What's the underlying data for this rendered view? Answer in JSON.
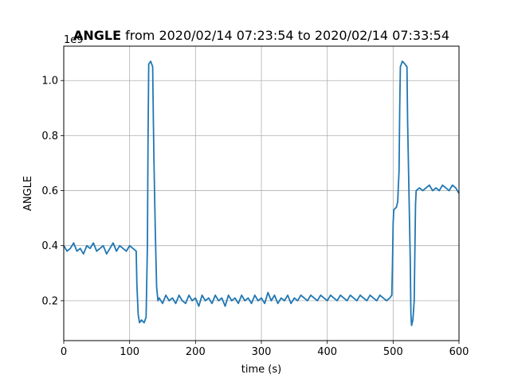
{
  "chart_data": {
    "type": "line",
    "title_bold": "ANGLE",
    "title_rest": " from 2020/02/14 07:23:54 to 2020/02/14 07:33:54",
    "xlabel": "time (s)",
    "ylabel": "ANGLE",
    "offset_text": "1e9",
    "xlim": [
      0,
      600
    ],
    "ylim": [
      0.055,
      1.125
    ],
    "y_multiplier": 1000000000,
    "xticks": [
      0,
      100,
      200,
      300,
      400,
      500,
      600
    ],
    "xtick_labels": [
      "0",
      "100",
      "200",
      "300",
      "400",
      "500",
      "600"
    ],
    "yticks": [
      0.2,
      0.4,
      0.6,
      0.8,
      1.0
    ],
    "ytick_labels": [
      "0.2",
      "0.4",
      "0.6",
      "0.8",
      "1.0"
    ],
    "grid": true,
    "line_color": "#1f77b4",
    "series": [
      {
        "name": "",
        "points": [
          [
            0,
            0.4
          ],
          [
            5,
            0.38
          ],
          [
            10,
            0.39
          ],
          [
            15,
            0.41
          ],
          [
            20,
            0.38
          ],
          [
            25,
            0.39
          ],
          [
            30,
            0.37
          ],
          [
            35,
            0.4
          ],
          [
            40,
            0.39
          ],
          [
            45,
            0.41
          ],
          [
            50,
            0.38
          ],
          [
            55,
            0.39
          ],
          [
            60,
            0.4
          ],
          [
            65,
            0.37
          ],
          [
            70,
            0.39
          ],
          [
            75,
            0.41
          ],
          [
            80,
            0.38
          ],
          [
            85,
            0.4
          ],
          [
            90,
            0.39
          ],
          [
            95,
            0.38
          ],
          [
            100,
            0.4
          ],
          [
            105,
            0.39
          ],
          [
            110,
            0.38
          ],
          [
            111,
            0.26
          ],
          [
            113,
            0.15
          ],
          [
            115,
            0.12
          ],
          [
            118,
            0.13
          ],
          [
            122,
            0.12
          ],
          [
            125,
            0.14
          ],
          [
            127,
            0.4
          ],
          [
            128,
            0.8
          ],
          [
            129,
            1.06
          ],
          [
            132,
            1.07
          ],
          [
            135,
            1.05
          ],
          [
            136,
            0.86
          ],
          [
            137,
            0.7
          ],
          [
            139,
            0.45
          ],
          [
            141,
            0.25
          ],
          [
            143,
            0.2
          ],
          [
            145,
            0.21
          ],
          [
            150,
            0.19
          ],
          [
            155,
            0.22
          ],
          [
            160,
            0.2
          ],
          [
            165,
            0.21
          ],
          [
            170,
            0.19
          ],
          [
            175,
            0.22
          ],
          [
            180,
            0.2
          ],
          [
            185,
            0.19
          ],
          [
            190,
            0.22
          ],
          [
            195,
            0.2
          ],
          [
            200,
            0.21
          ],
          [
            205,
            0.18
          ],
          [
            210,
            0.22
          ],
          [
            215,
            0.2
          ],
          [
            220,
            0.21
          ],
          [
            225,
            0.19
          ],
          [
            230,
            0.22
          ],
          [
            235,
            0.2
          ],
          [
            240,
            0.21
          ],
          [
            245,
            0.18
          ],
          [
            250,
            0.22
          ],
          [
            255,
            0.2
          ],
          [
            260,
            0.21
          ],
          [
            265,
            0.19
          ],
          [
            270,
            0.22
          ],
          [
            275,
            0.2
          ],
          [
            280,
            0.21
          ],
          [
            285,
            0.19
          ],
          [
            290,
            0.22
          ],
          [
            295,
            0.2
          ],
          [
            300,
            0.21
          ],
          [
            305,
            0.19
          ],
          [
            310,
            0.23
          ],
          [
            315,
            0.2
          ],
          [
            320,
            0.22
          ],
          [
            325,
            0.19
          ],
          [
            330,
            0.21
          ],
          [
            335,
            0.2
          ],
          [
            340,
            0.22
          ],
          [
            345,
            0.19
          ],
          [
            350,
            0.21
          ],
          [
            355,
            0.2
          ],
          [
            360,
            0.22
          ],
          [
            365,
            0.21
          ],
          [
            370,
            0.2
          ],
          [
            375,
            0.22
          ],
          [
            380,
            0.21
          ],
          [
            385,
            0.2
          ],
          [
            390,
            0.22
          ],
          [
            395,
            0.21
          ],
          [
            400,
            0.2
          ],
          [
            405,
            0.22
          ],
          [
            410,
            0.21
          ],
          [
            415,
            0.2
          ],
          [
            420,
            0.22
          ],
          [
            425,
            0.21
          ],
          [
            430,
            0.2
          ],
          [
            435,
            0.22
          ],
          [
            440,
            0.21
          ],
          [
            445,
            0.2
          ],
          [
            450,
            0.22
          ],
          [
            455,
            0.21
          ],
          [
            460,
            0.2
          ],
          [
            465,
            0.22
          ],
          [
            470,
            0.21
          ],
          [
            475,
            0.2
          ],
          [
            480,
            0.22
          ],
          [
            485,
            0.21
          ],
          [
            490,
            0.2
          ],
          [
            495,
            0.21
          ],
          [
            498,
            0.22
          ],
          [
            499,
            0.33
          ],
          [
            500,
            0.48
          ],
          [
            501,
            0.53
          ],
          [
            505,
            0.54
          ],
          [
            507,
            0.56
          ],
          [
            508,
            0.62
          ],
          [
            509,
            0.67
          ],
          [
            510,
            0.9
          ],
          [
            511,
            1.05
          ],
          [
            514,
            1.07
          ],
          [
            518,
            1.06
          ],
          [
            521,
            1.05
          ],
          [
            522,
            0.85
          ],
          [
            524,
            0.6
          ],
          [
            526,
            0.35
          ],
          [
            527,
            0.15
          ],
          [
            528,
            0.11
          ],
          [
            530,
            0.13
          ],
          [
            532,
            0.2
          ],
          [
            534,
            0.55
          ],
          [
            535,
            0.6
          ],
          [
            540,
            0.61
          ],
          [
            545,
            0.6
          ],
          [
            550,
            0.61
          ],
          [
            555,
            0.62
          ],
          [
            560,
            0.6
          ],
          [
            565,
            0.61
          ],
          [
            570,
            0.6
          ],
          [
            575,
            0.62
          ],
          [
            580,
            0.61
          ],
          [
            585,
            0.6
          ],
          [
            590,
            0.62
          ],
          [
            595,
            0.61
          ],
          [
            600,
            0.59
          ]
        ]
      }
    ]
  }
}
